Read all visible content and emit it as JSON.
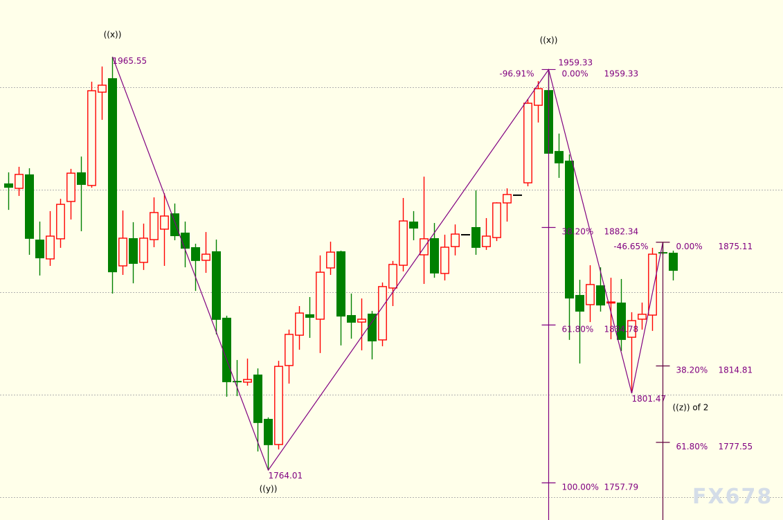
{
  "chart_data": {
    "type": "candlestick",
    "title": "",
    "xlabel": "",
    "ylabel": "",
    "ylim": [
      1745,
      1988
    ],
    "grid": {
      "horizontal": true,
      "vertical": false,
      "levels": [
        1950,
        1900,
        1850,
        1800,
        1750
      ]
    },
    "colors": {
      "up": "#ff0000",
      "down": "#008000",
      "doji": "#000000",
      "wave": "#800080",
      "fib_line_2": "#600040",
      "background": "#ffffea",
      "grid": "#b0b0b0"
    },
    "candles_ohlc": [
      [
        1903.8,
        1909.2,
        1890.9,
        1901.7
      ],
      [
        1901.4,
        1911.9,
        1897.7,
        1908.2
      ],
      [
        1908.2,
        1911.2,
        1869.0,
        1876.8
      ],
      [
        1876.4,
        1885.2,
        1858.9,
        1867.3
      ],
      [
        1867.0,
        1890.3,
        1863.6,
        1878.1
      ],
      [
        1876.8,
        1896.3,
        1872.4,
        1893.6
      ],
      [
        1895.0,
        1910.9,
        1886.2,
        1908.8
      ],
      [
        1909.2,
        1916.9,
        1880.5,
        1903.1
      ],
      [
        1902.8,
        1953.4,
        1901.7,
        1949.0
      ],
      [
        1948.3,
        1960.8,
        1934.8,
        1951.7
      ],
      [
        1955.1,
        1965.55,
        1850.1,
        1860.5
      ],
      [
        1863.6,
        1890.6,
        1859.2,
        1877.1
      ],
      [
        1877.1,
        1884.9,
        1855.1,
        1864.6
      ],
      [
        1865.3,
        1884.2,
        1861.6,
        1877.1
      ],
      [
        1876.4,
        1897.0,
        1872.7,
        1889.6
      ],
      [
        1881.5,
        1899.0,
        1863.6,
        1887.9
      ],
      [
        1889.2,
        1894.0,
        1876.1,
        1878.1
      ],
      [
        1879.8,
        1885.2,
        1862.9,
        1872.0
      ],
      [
        1872.7,
        1874.4,
        1851.4,
        1866.0
      ],
      [
        1866.3,
        1880.1,
        1860.2,
        1869.3
      ],
      [
        1870.7,
        1876.4,
        1830.2,
        1837.3
      ],
      [
        1838.3,
        1839.3,
        1799.8,
        1806.9
      ],
      [
        1807.5,
        1817.7,
        1800.1,
        1806.9
      ],
      [
        1806.9,
        1818.4,
        1805.2,
        1808.2
      ],
      [
        1810.6,
        1813.6,
        1773.1,
        1787.0
      ],
      [
        1789.0,
        1789.7,
        1764.01,
        1776.2
      ],
      [
        1776.5,
        1817.3,
        1774.1,
        1814.6
      ],
      [
        1815.0,
        1832.5,
        1806.2,
        1830.2
      ],
      [
        1829.8,
        1844.0,
        1822.7,
        1840.6
      ],
      [
        1840.0,
        1848.4,
        1828.5,
        1838.3
      ],
      [
        1837.6,
        1868.7,
        1821.1,
        1860.5
      ],
      [
        1862.6,
        1875.4,
        1859.2,
        1870.3
      ],
      [
        1870.7,
        1871.0,
        1824.8,
        1838.9
      ],
      [
        1839.6,
        1850.1,
        1828.1,
        1835.9
      ],
      [
        1836.2,
        1847.7,
        1822.4,
        1837.6
      ],
      [
        1840.3,
        1841.6,
        1818.0,
        1826.8
      ],
      [
        1827.5,
        1855.5,
        1824.4,
        1853.5
      ],
      [
        1852.8,
        1866.0,
        1844.0,
        1864.3
      ],
      [
        1863.9,
        1896.7,
        1860.9,
        1885.5
      ],
      [
        1885.2,
        1890.3,
        1876.1,
        1881.8
      ],
      [
        1869.0,
        1907.1,
        1854.8,
        1876.8
      ],
      [
        1877.1,
        1884.5,
        1857.8,
        1859.9
      ],
      [
        1859.9,
        1878.8,
        1856.5,
        1872.7
      ],
      [
        1873.0,
        1883.8,
        1868.7,
        1879.1
      ],
      [
        1879.1,
        1879.1,
        1879.1,
        1879.1
      ],
      [
        1882.5,
        1900.4,
        1869.0,
        1872.4
      ],
      [
        1873.0,
        1886.9,
        1871.4,
        1878.1
      ],
      [
        1877.4,
        1894.6,
        1875.7,
        1894.3
      ],
      [
        1894.3,
        1901.4,
        1885.2,
        1898.4
      ],
      [
        1898.4,
        1898.4,
        1898.4,
        1898.4
      ],
      [
        1904.1,
        1945.0,
        1902.4,
        1942.9
      ],
      [
        1941.9,
        1953.7,
        1933.5,
        1950.0
      ],
      [
        1949.3,
        1959.33,
        1918.3,
        1918.3
      ],
      [
        1919.6,
        1928.1,
        1906.5,
        1913.6
      ],
      [
        1914.9,
        1917.9,
        1827.5,
        1847.7
      ],
      [
        1849.4,
        1856.8,
        1816.0,
        1841.3
      ],
      [
        1844.7,
        1863.9,
        1836.2,
        1854.5
      ],
      [
        1854.1,
        1862.9,
        1841.3,
        1844.3
      ],
      [
        1845.7,
        1857.8,
        1827.8,
        1846.0
      ],
      [
        1845.7,
        1857.2,
        1822.1,
        1827.5
      ],
      [
        1828.8,
        1841.0,
        1801.47,
        1836.9
      ],
      [
        1837.6,
        1845.7,
        1832.5,
        1840.0
      ],
      [
        1839.6,
        1872.4,
        1831.9,
        1869.3
      ],
      [
        1870.3,
        1875.11,
        1869.0,
        1869.7
      ],
      [
        1870.0,
        1871.0,
        1856.5,
        1861.2
      ]
    ],
    "wave_points": [
      {
        "bar": 10,
        "price": 1965.55,
        "price_label": "1965.55",
        "wave_label": "((x))"
      },
      {
        "bar": 25,
        "price": 1764.01,
        "price_label": "1764.01",
        "wave_label": "((y))"
      },
      {
        "bar": 52,
        "price": 1959.33,
        "price_label": "",
        "wave_label": "((x))"
      },
      {
        "bar": 60,
        "price": 1801.47,
        "price_label": "1801.47",
        "wave_label": ""
      },
      {
        "bar": 63,
        "price": 1875.11,
        "price_label": "",
        "wave_label": ""
      }
    ],
    "fib_sets": [
      {
        "bar": 52,
        "ext_label": "-96.91%",
        "levels": [
          {
            "pct": "0.00%",
            "price": 1959.33,
            "overlap_text": "1959.33",
            "value": "1959.33"
          },
          {
            "pct": "38.20%",
            "price": 1882.34,
            "value": "1882.34"
          },
          {
            "pct": "61.80%",
            "price": 1834.78,
            "value": "1834.78"
          },
          {
            "pct": "100.00%",
            "price": 1757.79,
            "value": "1757.79"
          }
        ]
      },
      {
        "bar": 63,
        "ext_label": "-46.65%",
        "levels": [
          {
            "pct": "0.00%",
            "price": 1875.11,
            "value": "1875.11"
          },
          {
            "pct": "38.20%",
            "price": 1814.81,
            "value": "1814.81"
          },
          {
            "pct": "61.80%",
            "price": 1777.55,
            "value": "1777.55"
          }
        ]
      }
    ],
    "annotation": {
      "text": "((z)) of 2",
      "price": 1794.5,
      "bar": 64
    }
  },
  "watermark": "FX678"
}
